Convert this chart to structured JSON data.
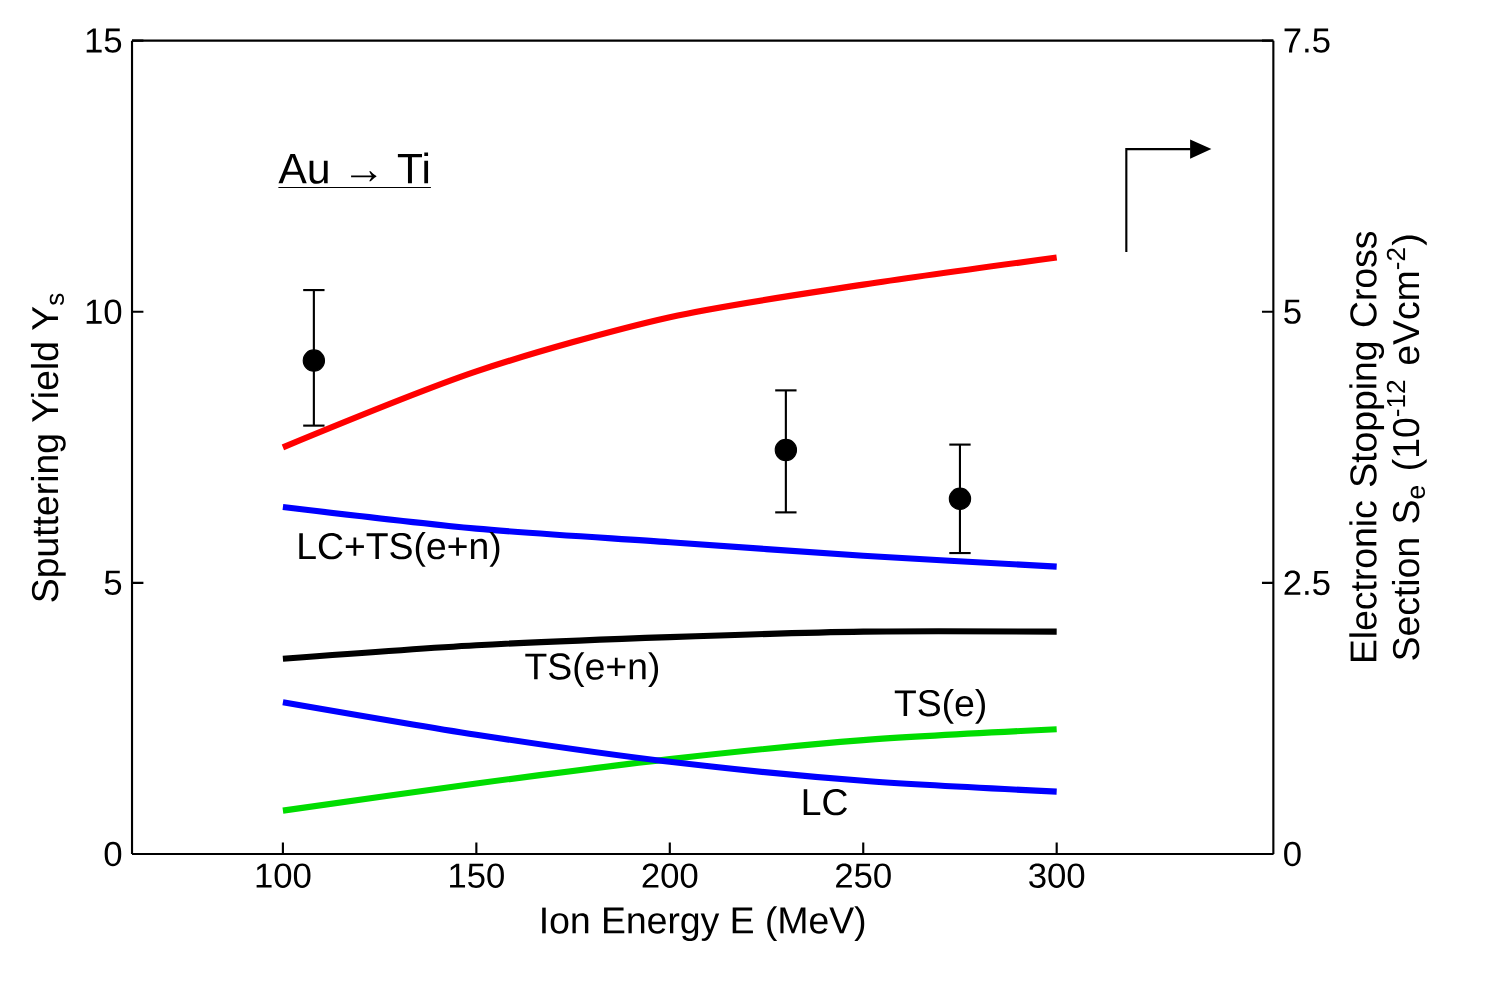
{
  "chart_data": {
    "type": "line",
    "xlabel": "Ion Energy  E (MeV)",
    "ylabel": "Sputtering Yield  Y$_{s}$",
    "y2label": "Electronic Stopping Cross Section S$_{e}$ (10$^{-12}$ eVcm$^{-2}$)",
    "x": [
      100,
      150,
      200,
      250,
      300
    ],
    "xlim": [
      61,
      356
    ],
    "xticks": [
      100,
      150,
      200,
      250,
      300
    ],
    "ylim": [
      0,
      15
    ],
    "yticks": [
      0,
      5,
      10,
      15
    ],
    "y2lim": [
      0,
      7.5
    ],
    "y2ticks": [
      0,
      2.5,
      5,
      7.5
    ],
    "series": [
      {
        "axis": "y2",
        "color": "#ff0000",
        "values": [
          3.75,
          4.45,
          4.95,
          5.25,
          5.5
        ]
      },
      {
        "name": "LC+TS(e+n)",
        "color": "#0000ff",
        "values": [
          6.4,
          6.0,
          5.75,
          5.5,
          5.3
        ]
      },
      {
        "name": "TS(e+n)",
        "color": "#000000",
        "values": [
          3.6,
          3.85,
          4.0,
          4.1,
          4.1
        ]
      },
      {
        "name": "TS(e)",
        "color": "#00dd00",
        "values": [
          0.8,
          1.3,
          1.75,
          2.1,
          2.3
        ]
      },
      {
        "name": "LC",
        "color": "#0000ff",
        "values": [
          2.8,
          2.2,
          1.7,
          1.35,
          1.15
        ]
      },
      {
        "type": "scatter",
        "color": "#000000",
        "x": [
          108,
          230,
          275
        ],
        "values": [
          9.1,
          7.45,
          6.55
        ],
        "errors": [
          [
            7.9,
            10.4
          ],
          [
            6.3,
            8.55
          ],
          [
            5.55,
            7.55
          ]
        ]
      }
    ],
    "annotations": [
      "Au → Ti"
    ]
  }
}
